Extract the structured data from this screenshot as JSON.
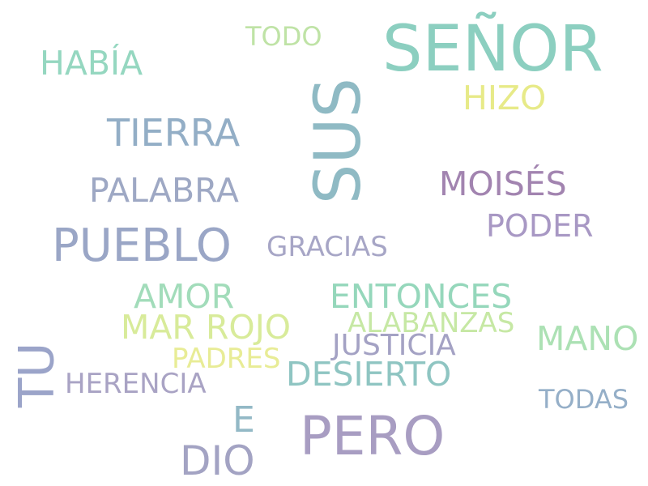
{
  "words": [
    {
      "text": "SEÑOR",
      "color": "#8ccfc0"
    },
    {
      "text": "SUS",
      "color": "#8fbac4"
    },
    {
      "text": "PUEBLO",
      "color": "#9aa6c6"
    },
    {
      "text": "PERO",
      "color": "#a89dc2"
    },
    {
      "text": "TU",
      "color": "#9ba4c9"
    },
    {
      "text": "TIERRA",
      "color": "#93aec6"
    },
    {
      "text": "PALABRA",
      "color": "#9ea8c4"
    },
    {
      "text": "MOISÉS",
      "color": "#a284b0"
    },
    {
      "text": "PODER",
      "color": "#a898c4"
    },
    {
      "text": "DIO",
      "color": "#a3a3c3"
    },
    {
      "text": "HABÍA",
      "color": "#95d7c0"
    },
    {
      "text": "HIZO",
      "color": "#e7ea88"
    },
    {
      "text": "TODO",
      "color": "#bfe3a6"
    },
    {
      "text": "GRACIAS",
      "color": "#a7a6c6"
    },
    {
      "text": "ENTONCES",
      "color": "#95d7bb"
    },
    {
      "text": "AMOR",
      "color": "#a2dcba"
    },
    {
      "text": "MAR ROJO",
      "color": "#d8eb9a"
    },
    {
      "text": "ALABANZAS",
      "color": "#c6e8a4"
    },
    {
      "text": "MANO",
      "color": "#ace1b4"
    },
    {
      "text": "JUSTICIA",
      "color": "#a4a2c4"
    },
    {
      "text": "PADRES",
      "color": "#e8ec96"
    },
    {
      "text": "DESIERTO",
      "color": "#8fc5c2"
    },
    {
      "text": "HERENCIA",
      "color": "#a9a3c4"
    },
    {
      "text": "E",
      "color": "#93b9c6"
    },
    {
      "text": "TODAS",
      "color": "#95afc8"
    }
  ]
}
